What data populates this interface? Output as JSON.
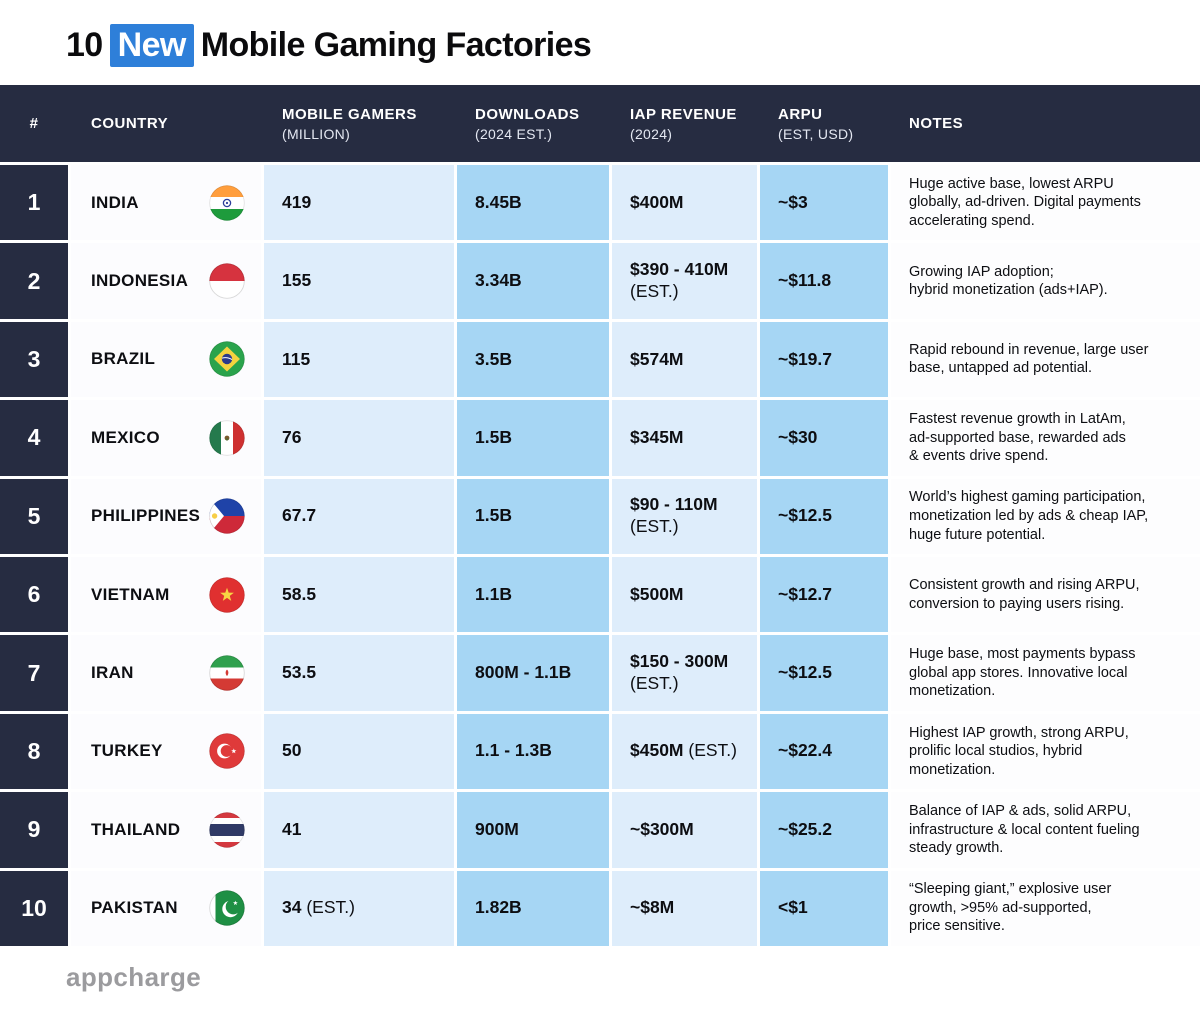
{
  "title": {
    "prefix": "10",
    "highlight": "New",
    "suffix": "Mobile Gaming Factories"
  },
  "colors": {
    "accent_blue": "#2E7FD9",
    "header_bg": "#262C41",
    "light_cell": "#DEEDFB",
    "medium_cell": "#A6D6F4",
    "footer_gray": "#9B9B9E"
  },
  "footer": {
    "brand": "appcharge"
  },
  "chart_data": {
    "type": "table",
    "title": "10 New Mobile Gaming Factories",
    "columns": [
      {
        "key": "rank",
        "label": "#",
        "sublabel": ""
      },
      {
        "key": "country",
        "label": "COUNTRY",
        "sublabel": ""
      },
      {
        "key": "gamers",
        "label": "MOBILE GAMERS",
        "sublabel": "(MILLION)"
      },
      {
        "key": "downloads",
        "label": "DOWNLOADS",
        "sublabel": "(2024 EST.)"
      },
      {
        "key": "iap",
        "label": "IAP REVENUE",
        "sublabel": "(2024)"
      },
      {
        "key": "arpu",
        "label": "ARPU",
        "sublabel": "(EST, USD)"
      },
      {
        "key": "notes",
        "label": "NOTES",
        "sublabel": ""
      }
    ],
    "rows": [
      {
        "rank": "1",
        "country": "INDIA",
        "flag": "india",
        "gamers": "419",
        "downloads": "8.45B",
        "iap": "$400M",
        "arpu": "~$3",
        "notes": "Huge active base, lowest ARPU\nglobally, ad-driven. Digital payments\naccelerating spend."
      },
      {
        "rank": "2",
        "country": "INDONESIA",
        "flag": "indonesia",
        "gamers": "155",
        "downloads": "3.34B",
        "iap": "$390 - 410M\n(EST.)",
        "arpu": "~$11.8",
        "notes": "Growing IAP adoption;\nhybrid monetization (ads+IAP)."
      },
      {
        "rank": "3",
        "country": "BRAZIL",
        "flag": "brazil",
        "gamers": "115",
        "downloads": "3.5B",
        "iap": "$574M",
        "arpu": "~$19.7",
        "notes": "Rapid rebound in revenue, large user\nbase, untapped ad potential."
      },
      {
        "rank": "4",
        "country": "MEXICO",
        "flag": "mexico",
        "gamers": "76",
        "downloads": "1.5B",
        "iap": "$345M",
        "arpu": "~$30",
        "notes": "Fastest revenue growth in LatAm,\nad-supported base, rewarded ads\n& events drive spend."
      },
      {
        "rank": "5",
        "country": "PHILIPPINES",
        "flag": "philippines",
        "gamers": "67.7",
        "downloads": "1.5B",
        "iap": "$90 - 110M\n(EST.)",
        "arpu": "~$12.5",
        "notes": "World’s highest gaming participation,\nmonetization led by ads & cheap IAP,\nhuge future potential."
      },
      {
        "rank": "6",
        "country": "VIETNAM",
        "flag": "vietnam",
        "gamers": "58.5",
        "downloads": "1.1B",
        "iap": "$500M",
        "arpu": "~$12.7",
        "notes": "Consistent growth and rising ARPU,\nconversion to paying users rising."
      },
      {
        "rank": "7",
        "country": "IRAN",
        "flag": "iran",
        "gamers": "53.5",
        "downloads": "800M - 1.1B",
        "iap": "$150 - 300M\n(EST.)",
        "arpu": "~$12.5",
        "notes": "Huge base, most payments bypass\nglobal app stores. Innovative local\nmonetization."
      },
      {
        "rank": "8",
        "country": "TURKEY",
        "flag": "turkey",
        "gamers": "50",
        "downloads": "1.1 - 1.3B",
        "iap": "$450M (EST.)",
        "arpu": "~$22.4",
        "notes": "Highest IAP growth, strong ARPU,\nprolific local studios, hybrid\nmonetization."
      },
      {
        "rank": "9",
        "country": "THAILAND",
        "flag": "thailand",
        "gamers": "41",
        "downloads": "900M",
        "iap": "~$300M",
        "arpu": "~$25.2",
        "notes": "Balance of IAP & ads, solid ARPU,\ninfrastructure & local content fueling\nsteady growth."
      },
      {
        "rank": "10",
        "country": "PAKISTAN",
        "flag": "pakistan",
        "gamers": "34 (EST.)",
        "downloads": "1.82B",
        "iap": "~$8M",
        "arpu": "<$1",
        "notes": "“Sleeping giant,” explosive user\ngrowth, >95% ad-supported,\nprice sensitive."
      }
    ]
  }
}
